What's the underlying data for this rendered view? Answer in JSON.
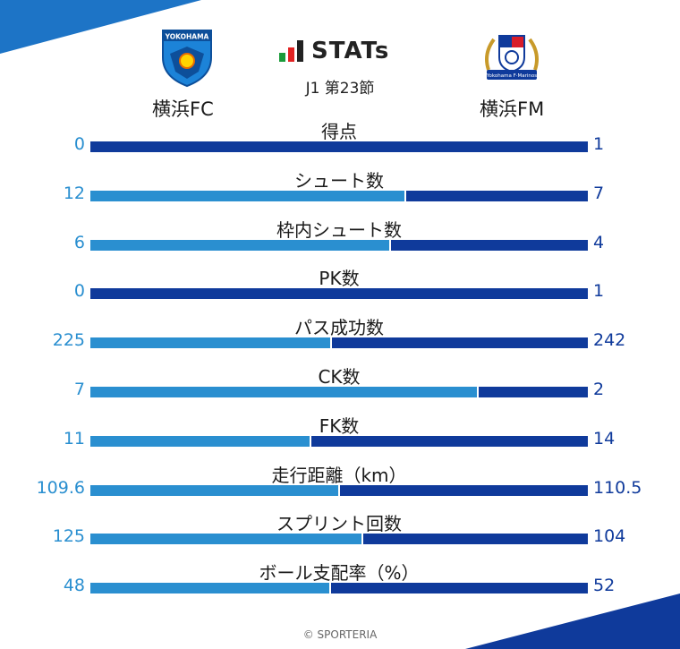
{
  "header": {
    "title": "STATs",
    "round": "J1 第23節",
    "home_team": "横浜FC",
    "away_team": "横浜FM",
    "home_logo_text": "YOKOHAMA",
    "away_logo_text": "Yokohama F·Marinos"
  },
  "colors": {
    "home": "#2a8fd0",
    "away": "#0f3a9b"
  },
  "stats": [
    {
      "label": "得点",
      "home": "0",
      "away": "1",
      "home_value": 0,
      "away_value": 1
    },
    {
      "label": "シュート数",
      "home": "12",
      "away": "7",
      "home_value": 12,
      "away_value": 7
    },
    {
      "label": "枠内シュート数",
      "home": "6",
      "away": "4",
      "home_value": 6,
      "away_value": 4
    },
    {
      "label": "PK数",
      "home": "0",
      "away": "1",
      "home_value": 0,
      "away_value": 1
    },
    {
      "label": "パス成功数",
      "home": "225",
      "away": "242",
      "home_value": 225,
      "away_value": 242
    },
    {
      "label": "CK数",
      "home": "7",
      "away": "2",
      "home_value": 7,
      "away_value": 2
    },
    {
      "label": "FK数",
      "home": "11",
      "away": "14",
      "home_value": 11,
      "away_value": 14
    },
    {
      "label": "走行距離（km）",
      "home": "109.6",
      "away": "110.5",
      "home_value": 109.6,
      "away_value": 110.5
    },
    {
      "label": "スプリント回数",
      "home": "125",
      "away": "104",
      "home_value": 125,
      "away_value": 104
    },
    {
      "label": "ボール支配率（%）",
      "home": "48",
      "away": "52",
      "home_value": 48,
      "away_value": 52
    }
  ],
  "footer": {
    "credit": "© SPORTERIA"
  }
}
